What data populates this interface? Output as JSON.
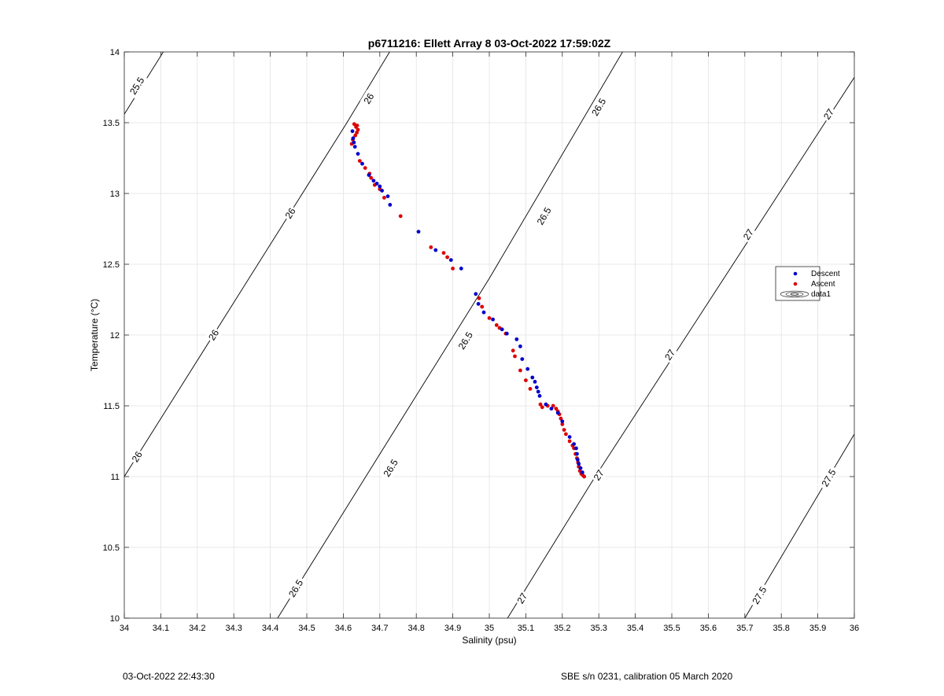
{
  "chart_data": {
    "type": "scatter",
    "title": "p6711216: Ellett Array 8 03-Oct-2022 17:59:02Z",
    "xlabel": "Salinity (psu)",
    "ylabel": "Temperature (°C)",
    "xlim": [
      34,
      36
    ],
    "ylim": [
      10,
      14
    ],
    "xticks": [
      34,
      34.1,
      34.2,
      34.3,
      34.4,
      34.5,
      34.6,
      34.7,
      34.8,
      34.9,
      35,
      35.1,
      35.2,
      35.3,
      35.4,
      35.5,
      35.6,
      35.7,
      35.8,
      35.9,
      36
    ],
    "xtick_labels": [
      "34",
      "34.1",
      "34.2",
      "34.3",
      "34.4",
      "34.5",
      "34.6",
      "34.7",
      "34.8",
      "34.9",
      "35",
      "35.1",
      "35.2",
      "35.3",
      "35.4",
      "35.5",
      "35.6",
      "35.7",
      "35.8",
      "35.9",
      "36"
    ],
    "yticks": [
      10,
      10.5,
      11,
      11.5,
      12,
      12.5,
      13,
      13.5,
      14
    ],
    "ytick_labels": [
      "10",
      "10.5",
      "11",
      "11.5",
      "12",
      "12.5",
      "13",
      "13.5",
      "14"
    ],
    "grid": true,
    "legend": {
      "placement": "right",
      "entries": [
        "Descent",
        "Ascent",
        "data1"
      ]
    },
    "colors": {
      "descent": "#0000cc",
      "ascent": "#dd0000",
      "contour": "#000000",
      "grid": "#e3e3e3"
    },
    "contours": [
      {
        "value": "25.5",
        "points": [
          [
            34,
            13.56
          ],
          [
            34.107,
            14
          ]
        ],
        "labels": [
          {
            "text": "25.5",
            "x": 34.035,
            "y": 13.76
          }
        ]
      },
      {
        "value": "26",
        "points": [
          [
            34,
            11.0
          ],
          [
            34.61,
            13.5
          ],
          [
            34.727,
            14
          ]
        ],
        "labels": [
          {
            "text": "26",
            "x": 34.035,
            "y": 11.14
          },
          {
            "text": "26",
            "x": 34.245,
            "y": 12.0
          },
          {
            "text": "26",
            "x": 34.455,
            "y": 12.86
          },
          {
            "text": "26",
            "x": 34.67,
            "y": 13.67
          }
        ]
      },
      {
        "value": "26.5",
        "points": [
          [
            34.42,
            10.0
          ],
          [
            35.0,
            12.4
          ],
          [
            35.365,
            14
          ]
        ],
        "labels": [
          {
            "text": "26.5",
            "x": 34.47,
            "y": 10.21
          },
          {
            "text": "26.5",
            "x": 34.73,
            "y": 11.06
          },
          {
            "text": "26.5",
            "x": 34.935,
            "y": 11.96
          },
          {
            "text": "26.5",
            "x": 35.15,
            "y": 12.84
          },
          {
            "text": "26.5",
            "x": 35.3,
            "y": 13.61
          }
        ]
      },
      {
        "value": "27",
        "points": [
          [
            35.05,
            10.0
          ],
          [
            35.29,
            11.0
          ],
          [
            36,
            13.82
          ]
        ],
        "labels": [
          {
            "text": "27",
            "x": 35.09,
            "y": 10.14
          },
          {
            "text": "27",
            "x": 35.3,
            "y": 11.01
          },
          {
            "text": "27",
            "x": 35.495,
            "y": 11.86
          },
          {
            "text": "27",
            "x": 35.71,
            "y": 12.71
          },
          {
            "text": "27",
            "x": 35.93,
            "y": 13.56
          }
        ]
      },
      {
        "value": "27.5",
        "points": [
          [
            35.7,
            10.0
          ],
          [
            36,
            11.3
          ]
        ],
        "labels": [
          {
            "text": "27.5",
            "x": 35.74,
            "y": 10.16
          },
          {
            "text": "27.5",
            "x": 35.93,
            "y": 10.99
          }
        ]
      }
    ],
    "series": [
      {
        "name": "Descent",
        "x": [
          34.625,
          34.627,
          34.629,
          34.632,
          34.64,
          34.652,
          34.67,
          34.683,
          34.692,
          34.7,
          34.706,
          34.722,
          34.728,
          34.806,
          34.853,
          34.895,
          34.923,
          34.963,
          34.97,
          34.985,
          35.01,
          35.035,
          35.048,
          35.075,
          35.085,
          35.09,
          35.105,
          35.118,
          35.125,
          35.13,
          35.134,
          35.138,
          35.155,
          35.17,
          35.188,
          35.2,
          35.22,
          35.232,
          35.238,
          35.24,
          35.242,
          35.245,
          35.25,
          35.255
        ],
        "y": [
          13.44,
          13.39,
          13.36,
          13.33,
          13.28,
          13.21,
          13.13,
          13.09,
          13.07,
          13.05,
          13.02,
          12.98,
          12.92,
          12.73,
          12.6,
          12.53,
          12.47,
          12.29,
          12.22,
          12.16,
          12.11,
          12.04,
          12.01,
          11.97,
          11.92,
          11.83,
          11.76,
          11.7,
          11.67,
          11.63,
          11.6,
          11.57,
          11.51,
          11.48,
          11.45,
          11.39,
          11.28,
          11.23,
          11.2,
          11.16,
          11.12,
          11.09,
          11.06,
          11.03
        ]
      },
      {
        "name": "Ascent",
        "x": [
          34.63,
          34.635,
          34.638,
          34.64,
          34.637,
          34.633,
          34.626,
          34.623,
          34.645,
          34.66,
          34.672,
          34.676,
          34.686,
          34.7,
          34.712,
          34.757,
          34.84,
          34.875,
          34.885,
          34.9,
          34.972,
          34.98,
          35.0,
          35.02,
          35.028,
          35.045,
          35.065,
          35.07,
          35.085,
          35.1,
          35.112,
          35.14,
          35.145,
          35.16,
          35.175,
          35.183,
          35.188,
          35.192,
          35.196,
          35.2,
          35.205,
          35.21,
          35.22,
          35.228,
          35.232,
          35.236,
          35.24,
          35.243,
          35.245,
          35.248,
          35.252,
          35.256,
          35.26
        ],
        "y": [
          13.49,
          13.47,
          13.48,
          13.45,
          13.43,
          13.41,
          13.38,
          13.35,
          13.23,
          13.18,
          13.14,
          13.11,
          13.06,
          13.03,
          12.97,
          12.84,
          12.62,
          12.58,
          12.55,
          12.47,
          12.26,
          12.2,
          12.12,
          12.07,
          12.05,
          12.01,
          11.89,
          11.85,
          11.75,
          11.68,
          11.62,
          11.51,
          11.49,
          11.5,
          11.5,
          11.48,
          11.46,
          11.44,
          11.41,
          11.37,
          11.33,
          11.3,
          11.25,
          11.22,
          11.2,
          11.16,
          11.13,
          11.1,
          11.07,
          11.04,
          11.02,
          11.01,
          11.0
        ]
      }
    ]
  },
  "footer": {
    "left": "03-Oct-2022 22:43:30",
    "right": "SBE s/n 0231, calibration 05 March 2020"
  }
}
